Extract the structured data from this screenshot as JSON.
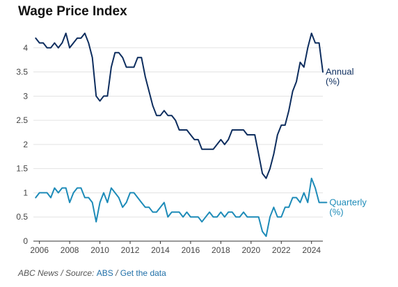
{
  "title": "Wage Price Index",
  "footer": {
    "source_prefix": "ABC News / Source: ",
    "source_link": "ABS",
    "separator": " / ",
    "data_link": "Get the data"
  },
  "colors": {
    "annual": "#0d2d5e",
    "quarterly": "#1d8bb8",
    "grid": "#e3e3e3",
    "axis": "#333333"
  },
  "chart_data": {
    "type": "line",
    "title": "Wage Price Index",
    "xlabel": "",
    "ylabel": "",
    "xlim": [
      2005.6,
      2024.75
    ],
    "ylim": [
      0,
      4.5
    ],
    "grid": true,
    "xticks": [
      2006,
      2008,
      2010,
      2012,
      2014,
      2016,
      2018,
      2020,
      2022,
      2024
    ],
    "yticks": [
      0,
      0.5,
      1,
      1.5,
      2,
      2.5,
      3,
      3.5,
      4
    ],
    "series": [
      {
        "name": "Annual (%)",
        "label_lines": [
          "Annual",
          "(%)"
        ],
        "color": "#0d2d5e",
        "x_start": 2005.75,
        "step": 0.25,
        "values": [
          4.2,
          4.1,
          4.1,
          4.0,
          4.0,
          4.1,
          4.0,
          4.1,
          4.3,
          4.0,
          4.1,
          4.2,
          4.2,
          4.3,
          4.1,
          3.8,
          3.0,
          2.9,
          3.0,
          3.0,
          3.6,
          3.9,
          3.9,
          3.8,
          3.6,
          3.6,
          3.6,
          3.8,
          3.8,
          3.4,
          3.1,
          2.8,
          2.6,
          2.6,
          2.7,
          2.6,
          2.6,
          2.5,
          2.3,
          2.3,
          2.3,
          2.2,
          2.1,
          2.1,
          1.9,
          1.9,
          1.9,
          1.9,
          2.0,
          2.1,
          2.0,
          2.1,
          2.3,
          2.3,
          2.3,
          2.3,
          2.2,
          2.2,
          2.2,
          1.8,
          1.4,
          1.3,
          1.5,
          1.8,
          2.2,
          2.4,
          2.4,
          2.7,
          3.1,
          3.3,
          3.7,
          3.6,
          4.0,
          4.3,
          4.1,
          4.1,
          3.5
        ]
      },
      {
        "name": "Quarterly (%)",
        "label_lines": [
          "Quarterly",
          "(%)"
        ],
        "color": "#1d8bb8",
        "x_start": 2005.75,
        "step": 0.25,
        "values": [
          0.9,
          1.0,
          1.0,
          1.0,
          0.9,
          1.1,
          1.0,
          1.1,
          1.1,
          0.8,
          1.0,
          1.1,
          1.1,
          0.9,
          0.9,
          0.8,
          0.4,
          0.8,
          1.0,
          0.8,
          1.1,
          1.0,
          0.9,
          0.7,
          0.8,
          1.0,
          1.0,
          0.9,
          0.8,
          0.7,
          0.7,
          0.6,
          0.6,
          0.7,
          0.8,
          0.5,
          0.6,
          0.6,
          0.6,
          0.5,
          0.6,
          0.5,
          0.5,
          0.5,
          0.4,
          0.5,
          0.6,
          0.5,
          0.5,
          0.6,
          0.5,
          0.6,
          0.6,
          0.5,
          0.5,
          0.6,
          0.5,
          0.5,
          0.5,
          0.5,
          0.2,
          0.1,
          0.5,
          0.7,
          0.5,
          0.5,
          0.7,
          0.7,
          0.9,
          0.9,
          0.8,
          1.0,
          0.8,
          1.3,
          1.1,
          0.8,
          0.8,
          0.8
        ]
      }
    ]
  }
}
